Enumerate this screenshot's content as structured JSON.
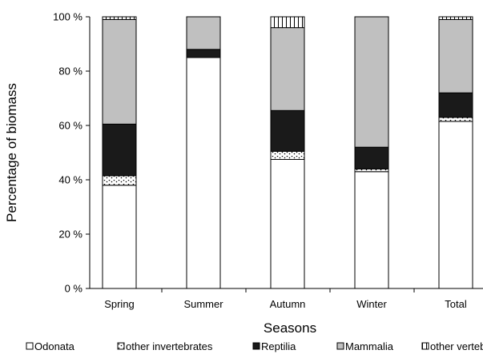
{
  "chart_data": {
    "type": "bar",
    "stacked": true,
    "percent": true,
    "xlabel": "Seasons",
    "ylabel": "Percentage of biomass",
    "ylim": [
      0,
      100
    ],
    "ytick_labels": [
      "0 %",
      "20 %",
      "40 %",
      "60 %",
      "80 %",
      "100 %"
    ],
    "categories": [
      "Spring",
      "Summer",
      "Autumn",
      "Winter",
      "Total"
    ],
    "grid": false,
    "legend_position": "bottom",
    "series": [
      {
        "name": "Odonata",
        "pattern": "white",
        "values": [
          38,
          85,
          47.5,
          43,
          61.5
        ]
      },
      {
        "name": "other invertebrates",
        "pattern": "dotted",
        "values": [
          3.5,
          0,
          3,
          1,
          1.5
        ]
      },
      {
        "name": "Reptilia",
        "pattern": "black",
        "values": [
          19,
          3,
          15,
          8,
          9
        ]
      },
      {
        "name": "Mammalia",
        "pattern": "gray",
        "values": [
          38.5,
          12,
          30.5,
          48,
          27
        ]
      },
      {
        "name": "other vertebrates",
        "pattern": "vertical-lines",
        "values": [
          1,
          0,
          4,
          0,
          1
        ]
      }
    ],
    "colors": {
      "gray": "#c0c0c0",
      "black": "#1a1a1a",
      "white": "#ffffff"
    }
  }
}
